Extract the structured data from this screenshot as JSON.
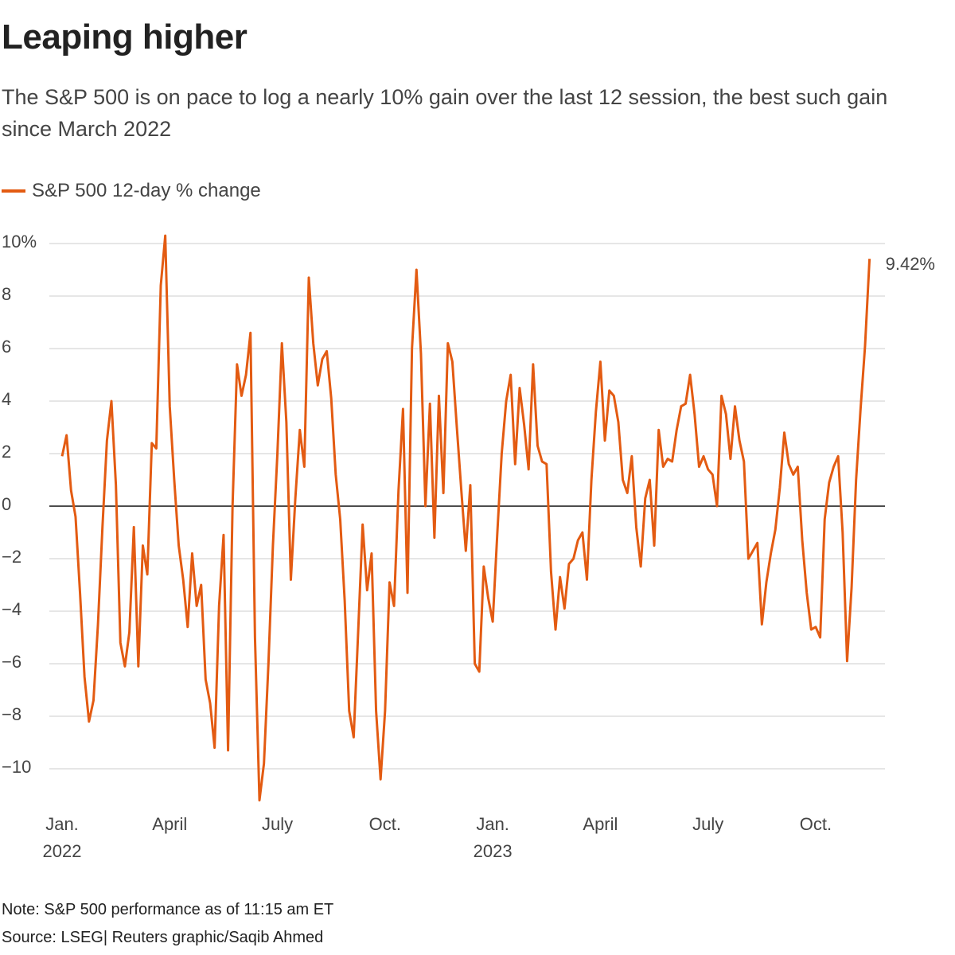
{
  "chart_data": {
    "type": "line",
    "title": "Leaping higher",
    "subtitle": "The S&P 500 is on pace to log a nearly 10% gain over the last 12 session, the best such gain since March 2022",
    "note": "Note: S&P 500 performance as of 11:15 am ET",
    "source": "Source: LSEG| Reuters graphic/Saqib Ahmed",
    "end_label": "9.42%",
    "x": [
      0,
      0.125,
      0.25,
      0.375,
      0.5,
      0.625,
      0.75,
      0.875,
      1,
      1.125,
      1.25,
      1.375,
      1.5,
      1.625,
      1.75,
      1.875,
      2,
      2.125,
      2.25,
      2.375,
      2.5,
      2.625,
      2.75,
      2.875,
      3,
      3.125,
      3.25,
      3.375,
      3.5,
      3.625,
      3.75,
      3.875,
      4,
      4.125,
      4.25,
      4.375,
      4.5,
      4.625,
      4.75,
      4.875,
      5,
      5.125,
      5.25,
      5.375,
      5.5,
      5.625,
      5.75,
      5.875,
      6,
      6.125,
      6.25,
      6.375,
      6.5,
      6.625,
      6.75,
      6.875,
      7,
      7.125,
      7.25,
      7.375,
      7.5,
      7.625,
      7.75,
      7.875,
      8,
      8.125,
      8.25,
      8.375,
      8.5,
      8.625,
      8.75,
      8.875,
      9,
      9.125,
      9.25,
      9.375,
      9.5,
      9.625,
      9.75,
      9.875,
      10,
      10.125,
      10.25,
      10.375,
      10.5,
      10.625,
      10.75,
      10.875,
      11,
      11.125,
      11.25,
      11.375,
      11.5,
      11.625,
      11.75,
      11.875,
      12,
      12.125,
      12.25,
      12.375,
      12.5,
      12.625,
      12.75,
      12.875,
      13,
      13.125,
      13.25,
      13.375,
      13.5,
      13.625,
      13.75,
      13.875,
      14,
      14.125,
      14.25,
      14.375,
      14.5,
      14.625,
      14.75,
      14.875,
      15,
      15.125,
      15.25,
      15.375,
      15.5,
      15.625,
      15.75,
      15.875,
      16,
      16.125,
      16.25,
      16.375,
      16.5,
      16.625,
      16.75,
      16.875,
      17,
      17.125,
      17.25,
      17.375,
      17.5,
      17.625,
      17.75,
      17.875,
      18,
      18.125,
      18.25,
      18.375,
      18.5,
      18.625,
      18.75,
      18.875,
      19,
      19.125,
      19.25,
      19.375,
      19.5,
      19.625,
      19.75,
      19.875,
      20,
      20.125,
      20.25,
      20.375,
      20.5,
      20.625,
      20.75,
      20.875,
      21,
      21.125,
      21.25,
      21.375,
      21.5,
      21.625,
      21.75,
      21.875,
      22,
      22.125,
      22.25,
      22.375,
      22.5
    ],
    "series": [
      {
        "name": "S&P 500 12-day % change",
        "color": "#e35b12",
        "values": [
          1.9,
          2.7,
          0.6,
          -0.4,
          -3.3,
          -6.5,
          -8.2,
          -7.4,
          -4.5,
          -0.8,
          2.5,
          4,
          0.8,
          -5.2,
          -6.1,
          -4.8,
          -0.8,
          -6.1,
          -1.5,
          -2.6,
          2.4,
          2.2,
          8.4,
          10.3,
          3.8,
          1,
          -1.5,
          -2.8,
          -4.6,
          -1.8,
          -3.8,
          -3,
          -6.6,
          -7.5,
          -9.2,
          -3.8,
          -1.1,
          -9.3,
          0,
          5.4,
          4.2,
          5,
          6.6,
          -5,
          -11.2,
          -9.8,
          -6,
          -1.5,
          2,
          6.2,
          3.2,
          -2.8,
          0.3,
          2.9,
          1.5,
          8.7,
          6.2,
          4.6,
          5.6,
          5.9,
          4.1,
          1.2,
          -0.5,
          -3.6,
          -7.8,
          -8.8,
          -4.8,
          -0.7,
          -3.2,
          -1.8,
          -7.8,
          -10.4,
          -7.8,
          -2.9,
          -3.8,
          0.6,
          3.7,
          -3.3,
          6,
          9,
          5.8,
          0,
          3.9,
          -1.2,
          4.2,
          0.5,
          6.2,
          5.5,
          3,
          0.6,
          -1.7,
          0.8,
          -6,
          -6.3,
          -2.3,
          -3.5,
          -4.4,
          -1.1,
          2,
          4,
          5,
          1.6,
          4.5,
          3.1,
          1.4,
          5.4,
          2.3,
          1.7,
          1.6,
          -2.5,
          -4.7,
          -2.7,
          -3.9,
          -2.2,
          -2,
          -1.3,
          -1,
          -2.8,
          1,
          3.6,
          5.5,
          2.5,
          4.4,
          4.2,
          3.2,
          1,
          0.5,
          1.9,
          -0.8,
          -2.3,
          0.3,
          1,
          -1.5,
          2.9,
          1.5,
          1.8,
          1.7,
          2.9,
          3.8,
          3.9,
          5,
          3.5,
          1.5,
          1.9,
          1.4,
          1.2,
          0,
          4.2,
          3.5,
          1.8,
          3.8,
          2.5,
          1.7,
          -2,
          -1.7,
          -1.4,
          -4.5,
          -2.9,
          -1.8,
          -0.9,
          0.7,
          2.8,
          1.6,
          1.2,
          1.5,
          -1.3,
          -3.3,
          -4.7,
          -4.6,
          -5,
          -0.5,
          0.9,
          1.5,
          1.9,
          -1,
          -5.9,
          -3.1,
          1,
          3.7,
          6.1,
          9.42
        ]
      }
    ],
    "xlim": [
      -0.355,
      22.93
    ],
    "xticks": [
      {
        "value": 0,
        "label": "Jan.",
        "year": "2022"
      },
      {
        "value": 3,
        "label": "April"
      },
      {
        "value": 6,
        "label": "July"
      },
      {
        "value": 9,
        "label": "Oct."
      },
      {
        "value": 12,
        "label": "Jan.",
        "year": "2023"
      },
      {
        "value": 15,
        "label": "April"
      },
      {
        "value": 18,
        "label": "July"
      },
      {
        "value": 21,
        "label": "Oct."
      }
    ],
    "ylim": [
      -10,
      10
    ],
    "yticks": [
      {
        "value": -10,
        "label": "−10"
      },
      {
        "value": -8,
        "label": "−8"
      },
      {
        "value": -6,
        "label": "−6"
      },
      {
        "value": -4,
        "label": "−4"
      },
      {
        "value": -2,
        "label": "−2"
      },
      0,
      2,
      4,
      6,
      8,
      {
        "value": 10,
        "label": "10%"
      }
    ],
    "grid": true,
    "legend": "top-left"
  }
}
